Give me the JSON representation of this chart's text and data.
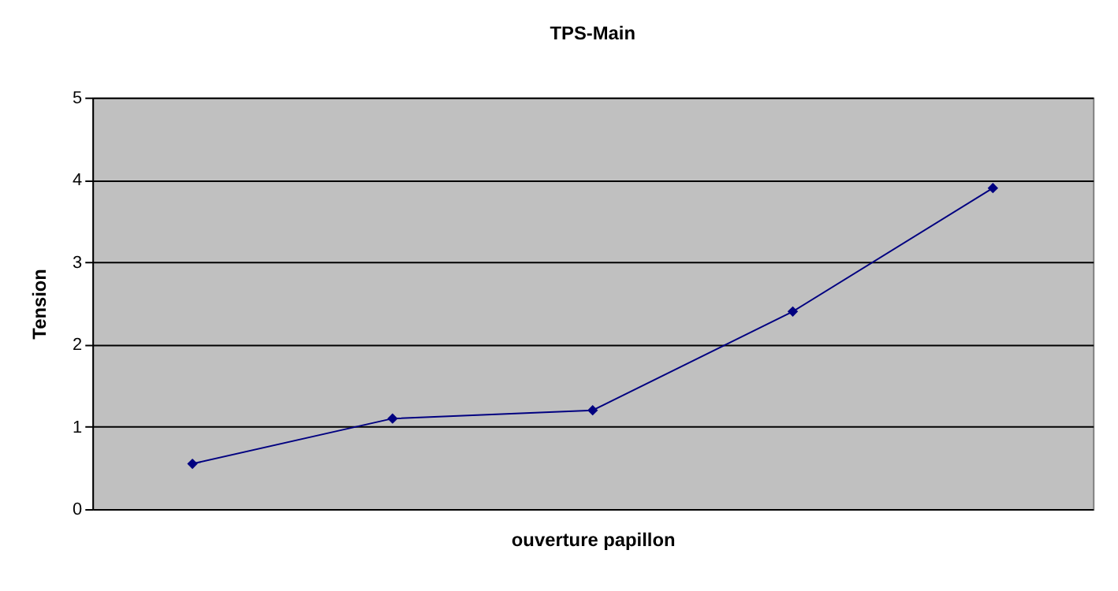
{
  "chart_data": {
    "type": "line",
    "title": "TPS-Main",
    "xlabel": "ouverture papillon",
    "ylabel": "Tension",
    "categories": [
      null,
      null,
      null,
      null,
      null
    ],
    "series": [
      {
        "color": "#000080",
        "values": [
          0.55,
          1.1,
          1.2,
          2.4,
          3.9
        ]
      }
    ],
    "ylim": [
      0,
      5
    ],
    "yticks": [
      0,
      1,
      2,
      3,
      4,
      5
    ],
    "grid": "y",
    "tick_labels": "y",
    "marker": "diamond",
    "line_style": "solid",
    "legend": false
  }
}
